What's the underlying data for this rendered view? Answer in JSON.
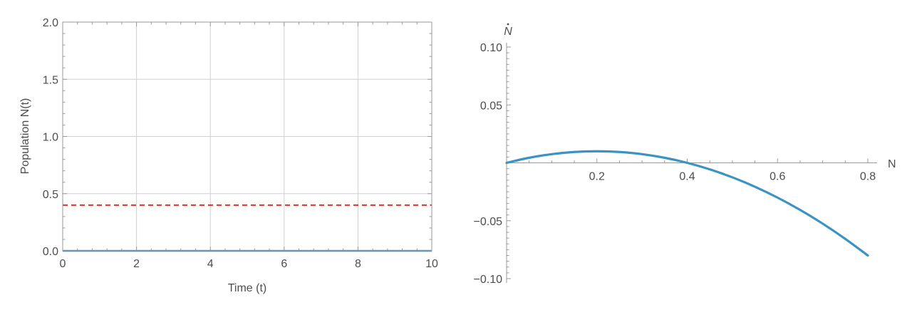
{
  "chart_data": [
    {
      "type": "line",
      "xlabel": "Time (t)",
      "ylabel": "Population N(t)",
      "xlim": [
        0,
        10
      ],
      "ylim": [
        0,
        2
      ],
      "x_ticks": [
        "0",
        "2",
        "4",
        "6",
        "8",
        "10"
      ],
      "y_ticks": [
        "0.0",
        "0.5",
        "1.0",
        "1.5",
        "2.0"
      ],
      "grid": true,
      "series": [
        {
          "style": "solid",
          "color": "#3a93c3",
          "x": [
            0,
            10
          ],
          "y": [
            0,
            0
          ]
        },
        {
          "style": "dashed",
          "color": "#e0201b",
          "x": [
            0,
            10
          ],
          "y": [
            0.4,
            0.4
          ]
        }
      ]
    },
    {
      "type": "line",
      "xlabel": "N",
      "ylabel": "N",
      "ylabel_has_dot": true,
      "xlim": [
        0,
        0.8
      ],
      "ylim": [
        -0.1,
        0.1
      ],
      "x_ticks": [
        "0.2",
        "0.4",
        "0.6",
        "0.8"
      ],
      "y_ticks": [
        "−0.10",
        "−0.05",
        "0.05",
        "0.10"
      ],
      "grid": false,
      "series": [
        {
          "style": "solid",
          "color": "#3a93c3",
          "x": [
            0,
            0.05,
            0.1,
            0.15,
            0.2,
            0.25,
            0.3,
            0.35,
            0.4,
            0.45,
            0.5,
            0.55,
            0.6,
            0.65,
            0.7,
            0.75,
            0.8
          ],
          "y": [
            0,
            0.00438,
            0.0075,
            0.00938,
            0.01,
            0.00938,
            0.0075,
            0.00438,
            0,
            -0.00563,
            -0.0125,
            -0.02063,
            -0.03,
            -0.04063,
            -0.0525,
            -0.06563,
            -0.08
          ]
        }
      ]
    }
  ]
}
